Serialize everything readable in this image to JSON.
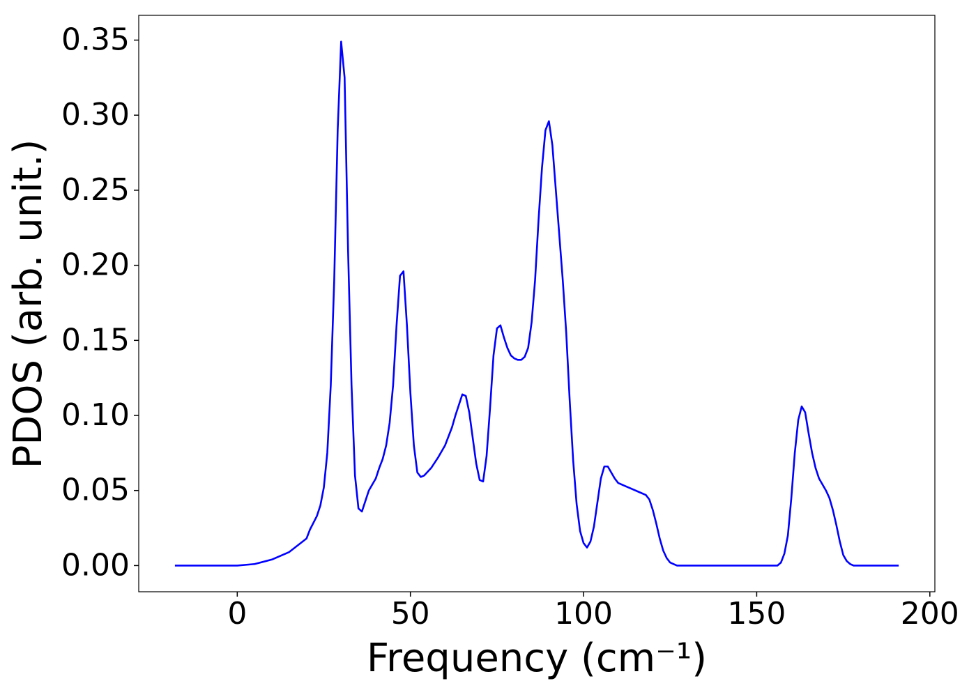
{
  "chart_data": {
    "type": "line",
    "xlabel": "Frequency (cm⁻¹)",
    "ylabel": "PDOS (arb. unit.)",
    "x": [
      -18,
      0,
      5,
      10,
      15,
      20,
      21,
      23,
      24,
      25,
      26,
      27,
      28,
      29,
      30,
      31,
      32,
      33,
      34,
      35,
      36,
      37,
      38,
      40,
      41,
      42,
      43,
      44,
      45,
      46,
      47,
      48,
      49,
      50,
      51,
      52,
      53,
      54,
      56,
      58,
      60,
      62,
      63,
      64,
      65,
      66,
      67,
      68,
      69,
      70,
      71,
      72,
      73,
      74,
      75,
      76,
      77,
      78,
      79,
      80,
      81,
      82,
      83,
      84,
      85,
      86,
      87,
      88,
      89,
      90,
      91,
      92,
      93,
      94,
      95,
      96,
      97,
      98,
      99,
      100,
      101,
      102,
      103,
      104,
      105,
      106,
      107,
      108,
      109,
      110,
      112,
      114,
      116,
      118,
      119,
      120,
      121,
      122,
      123,
      124,
      125,
      126,
      127,
      156,
      157,
      158,
      159,
      160,
      161,
      162,
      163,
      164,
      165,
      166,
      167,
      168,
      170,
      171,
      172,
      173,
      174,
      175,
      176,
      177,
      178,
      191
    ],
    "series": [
      {
        "name": "PDOS",
        "color": "#0000ff",
        "values": [
          0,
          0,
          0.001,
          0.004,
          0.009,
          0.018,
          0.024,
          0.033,
          0.04,
          0.052,
          0.075,
          0.12,
          0.19,
          0.29,
          0.349,
          0.325,
          0.21,
          0.12,
          0.06,
          0.038,
          0.036,
          0.043,
          0.05,
          0.058,
          0.065,
          0.071,
          0.08,
          0.095,
          0.12,
          0.16,
          0.193,
          0.196,
          0.16,
          0.115,
          0.08,
          0.062,
          0.059,
          0.06,
          0.065,
          0.072,
          0.08,
          0.092,
          0.1,
          0.107,
          0.114,
          0.113,
          0.102,
          0.085,
          0.068,
          0.057,
          0.056,
          0.073,
          0.105,
          0.14,
          0.158,
          0.16,
          0.152,
          0.145,
          0.14,
          0.138,
          0.137,
          0.137,
          0.139,
          0.145,
          0.162,
          0.19,
          0.23,
          0.265,
          0.29,
          0.296,
          0.28,
          0.25,
          0.22,
          0.19,
          0.155,
          0.11,
          0.07,
          0.041,
          0.023,
          0.015,
          0.012,
          0.016,
          0.026,
          0.042,
          0.058,
          0.066,
          0.066,
          0.062,
          0.058,
          0.055,
          0.053,
          0.051,
          0.049,
          0.047,
          0.044,
          0.037,
          0.028,
          0.018,
          0.01,
          0.005,
          0.002,
          0.001,
          0,
          0,
          0.002,
          0.008,
          0.02,
          0.045,
          0.075,
          0.097,
          0.106,
          0.102,
          0.088,
          0.075,
          0.065,
          0.058,
          0.05,
          0.045,
          0.037,
          0.027,
          0.016,
          0.007,
          0.003,
          0.001,
          0,
          0
        ]
      }
    ],
    "xlim": [
      -28.45,
      201.45
    ],
    "ylim": [
      -0.01745,
      0.3665
    ],
    "xticks": [
      0,
      50,
      100,
      150,
      200
    ],
    "yticks": [
      {
        "value": 0,
        "label": "0.00"
      },
      {
        "value": 0.05,
        "label": "0.05"
      },
      {
        "value": 0.1,
        "label": "0.10"
      },
      {
        "value": 0.15,
        "label": "0.15"
      },
      {
        "value": 0.2,
        "label": "0.20"
      },
      {
        "value": 0.25,
        "label": "0.25"
      },
      {
        "value": 0.3,
        "label": "0.30"
      },
      {
        "value": 0.35,
        "label": "0.35"
      }
    ]
  }
}
